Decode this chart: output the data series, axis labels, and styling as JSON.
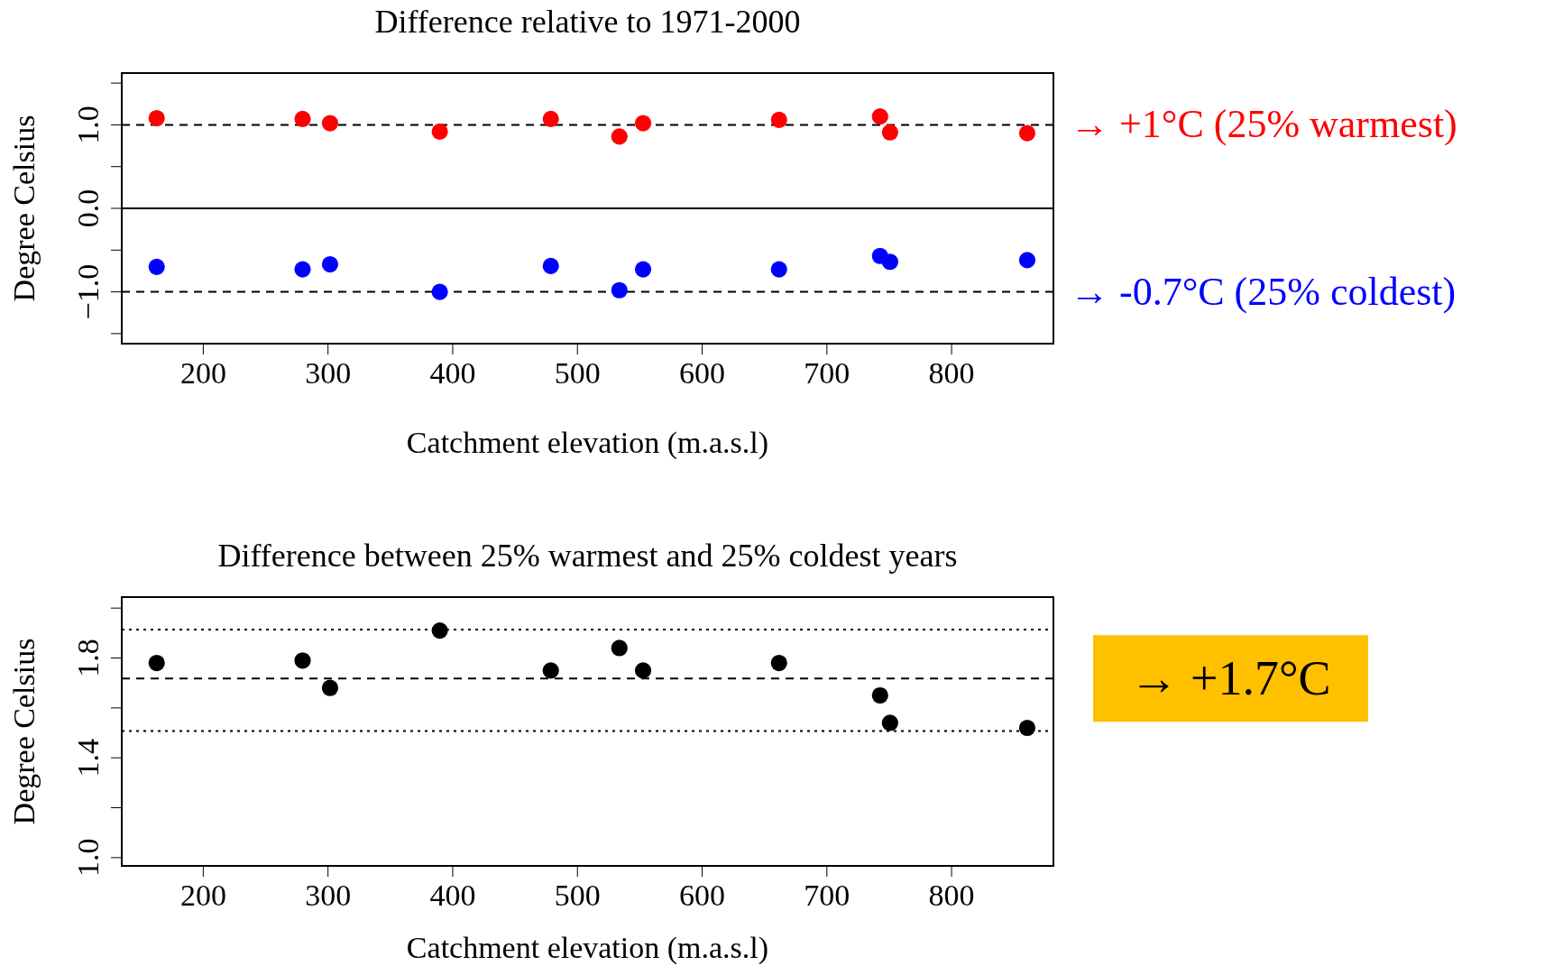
{
  "chart_data": [
    {
      "type": "scatter",
      "title": "Difference relative to 1971-2000",
      "xlabel": "Catchment elevation (m.a.s.l)",
      "ylabel": "Degree Celsius",
      "marker": "circle",
      "grid": false,
      "x": [
        163,
        280,
        302,
        390,
        479,
        534,
        553,
        662,
        743,
        751,
        861
      ],
      "series": [
        {
          "color": "#ff0000",
          "values": [
            1.08,
            1.07,
            1.02,
            0.92,
            1.07,
            0.86,
            1.02,
            1.06,
            1.1,
            0.91,
            0.9
          ]
        },
        {
          "color": "#0000ff",
          "values": [
            -0.7,
            -0.73,
            -0.67,
            -1.0,
            -0.69,
            -0.98,
            -0.73,
            -0.73,
            -0.57,
            -0.64,
            -0.62
          ]
        }
      ],
      "xlim": [
        135,
        882
      ],
      "xticks": [
        200,
        300,
        400,
        500,
        600,
        700,
        800
      ],
      "ylim": [
        -1.62,
        1.62
      ],
      "yticks": [
        {
          "value": -1.5,
          "label": null
        },
        {
          "value": -1.0,
          "label": "−1.0"
        },
        {
          "value": -0.5,
          "label": null
        },
        {
          "value": 0,
          "label": "0.0"
        },
        {
          "value": 0.5,
          "label": null
        },
        {
          "value": 1.0,
          "label": "1.0"
        },
        {
          "value": 1.5,
          "label": null
        }
      ],
      "ref_lines": [
        {
          "axis": "y",
          "value": 1,
          "line_style": "dashed",
          "color": "#000000"
        },
        {
          "axis": "y",
          "value": 0,
          "line_style": "solid",
          "color": "#000000"
        },
        {
          "axis": "y",
          "value": -1,
          "line_style": "dashed",
          "color": "#000000"
        }
      ],
      "annotations": [
        "→ +1°C (25% warmest)",
        "→ -0.7°C (25% coldest)"
      ]
    },
    {
      "type": "scatter",
      "title": "Difference between 25% warmest and 25% coldest years",
      "xlabel": "Catchment elevation (m.a.s.l)",
      "ylabel": "Degree Celsius",
      "marker": "circle",
      "grid": false,
      "x": [
        163,
        280,
        302,
        390,
        479,
        534,
        553,
        662,
        743,
        751,
        861
      ],
      "series": [
        {
          "color": "#000000",
          "values": [
            1.78,
            1.79,
            1.68,
            1.91,
            1.75,
            1.84,
            1.75,
            1.78,
            1.65,
            1.54,
            1.52
          ]
        }
      ],
      "xlim": [
        135,
        882
      ],
      "xticks": [
        200,
        300,
        400,
        500,
        600,
        700,
        800
      ],
      "ylim": [
        0.967,
        2.044
      ],
      "yticks": [
        {
          "value": 1.0,
          "label": "1.0"
        },
        {
          "value": 1.2,
          "label": null
        },
        1.4,
        {
          "value": 1.6,
          "label": null
        },
        1.8,
        {
          "value": 2.0,
          "label": null
        }
      ],
      "ref_lines": [
        {
          "axis": "y",
          "value": 1.914,
          "line_style": "dotted",
          "color": "#000000"
        },
        {
          "axis": "y",
          "value": 1.718,
          "line_style": "dashed",
          "color": "#000000"
        },
        {
          "axis": "y",
          "value": 1.507,
          "line_style": "dotted",
          "color": "#000000"
        }
      ],
      "annotations": [
        "→ +1.7°C"
      ]
    }
  ]
}
